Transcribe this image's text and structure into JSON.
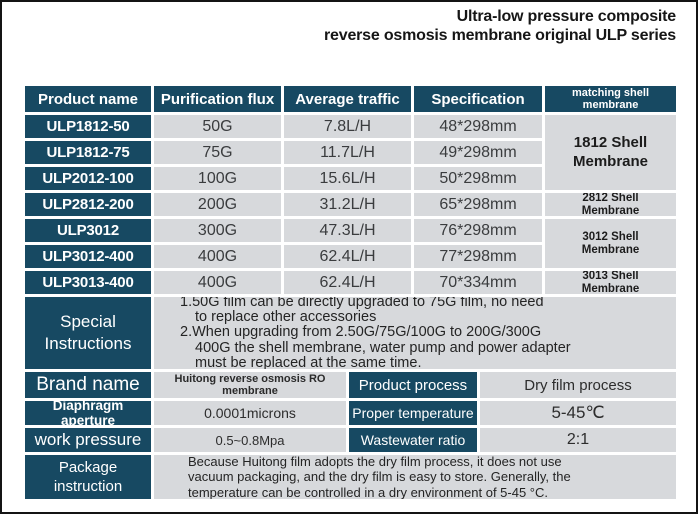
{
  "page": {
    "title_line1": "Ultra-low pressure composite",
    "title_line2": "reverse osmosis membrane original ULP series"
  },
  "product_table": {
    "headers": {
      "name": "Product name",
      "flux": "Purification flux",
      "traffic": "Average traffic",
      "spec": "Specification",
      "shell": "matching shell membrane"
    },
    "rows": [
      {
        "name": "ULP1812-50",
        "flux": "50G",
        "traffic": "7.8L/H",
        "spec": "48*298mm"
      },
      {
        "name": "ULP1812-75",
        "flux": "75G",
        "traffic": "11.7L/H",
        "spec": "49*298mm"
      },
      {
        "name": "ULP2012-100",
        "flux": "100G",
        "traffic": "15.6L/H",
        "spec": "50*298mm"
      },
      {
        "name": "ULP2812-200",
        "flux": "200G",
        "traffic": "31.2L/H",
        "spec": "65*298mm"
      },
      {
        "name": "ULP3012",
        "flux": "300G",
        "traffic": "47.3L/H",
        "spec": "76*298mm"
      },
      {
        "name": "ULP3012-400",
        "flux": "400G",
        "traffic": "62.4L/H",
        "spec": "77*298mm"
      },
      {
        "name": "ULP3013-400",
        "flux": "400G",
        "traffic": "62.4L/H",
        "spec": "70*334mm"
      }
    ],
    "shell_groups": [
      {
        "label": "1812 Shell Membrane"
      },
      {
        "label": "2812 Shell Membrane"
      },
      {
        "label": "3012 Shell Membrane"
      },
      {
        "label": "3013 Shell Membrane"
      }
    ]
  },
  "special_instructions": {
    "label": "Special Instructions",
    "lines": [
      "1.50G film can be directly upgraded to 75G film, no need",
      "to replace other accessories",
      "2.When upgrading from 2.50G/75G/100G to 200G/300G",
      "400G the shell membrane, water pump and power adapter",
      "must be replaced at the same time."
    ]
  },
  "specs": {
    "brand_label": "Brand name",
    "brand_value": "Huitong reverse osmosis RO membrane",
    "process_label": "Product process",
    "process_value": "Dry film process",
    "aperture_label": "Diaphragm aperture",
    "aperture_value": "0.0001microns",
    "temperature_label": "Proper temperature",
    "temperature_value": "5-45℃",
    "pressure_label": "work pressure",
    "pressure_value": "0.5~0.8Mpa",
    "wastewater_label": "Wastewater ratio",
    "wastewater_value": "2:1"
  },
  "package": {
    "label": "Package instruction",
    "lines": [
      "Because Huitong film adopts the dry film process, it does not use",
      "vacuum packaging, and the dry film is easy to store. Generally, the",
      "temperature can be controlled in a dry environment of 5-45 °C."
    ]
  },
  "colors": {
    "navy": "#174962",
    "cell_gray": "#d7d9dc",
    "page_border": "#141414"
  }
}
